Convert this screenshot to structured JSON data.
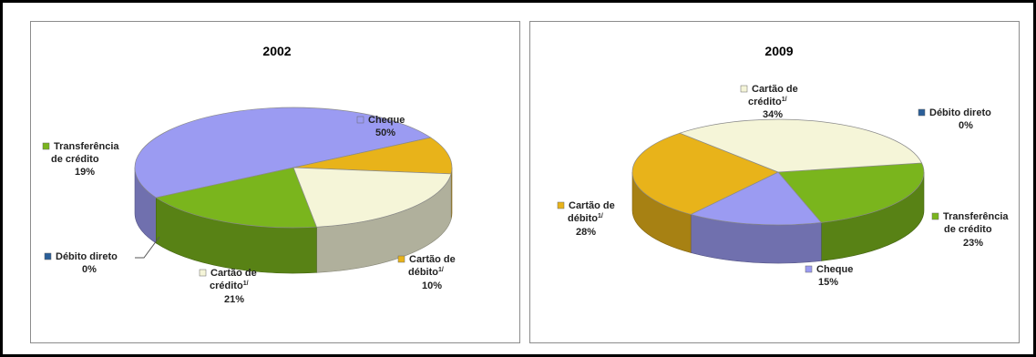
{
  "chart_data": [
    {
      "type": "pie",
      "title": "2002",
      "slices": [
        {
          "name": "Cheque",
          "value": 50,
          "pct": "50%",
          "color": "#9b9bf2"
        },
        {
          "name": "Cartão de débito",
          "sup": "1/",
          "value": 10,
          "pct": "10%",
          "color": "#e8b31a"
        },
        {
          "name": "Cartão de crédito",
          "sup": "1/",
          "value": 21,
          "pct": "21%",
          "color": "#f5f5d8"
        },
        {
          "name": "Débito direto",
          "value": 0,
          "pct": "0%",
          "color": "#2a5f99"
        },
        {
          "name": "Transferência de crédito",
          "value": 19,
          "pct": "19%",
          "color": "#7ab51d"
        }
      ]
    },
    {
      "type": "pie",
      "title": "2009",
      "slices": [
        {
          "name": "Débito direto",
          "value": 0,
          "pct": "0%",
          "color": "#2a5f99"
        },
        {
          "name": "Transferência de crédito",
          "value": 23,
          "pct": "23%",
          "color": "#7ab51d"
        },
        {
          "name": "Cheque",
          "value": 15,
          "pct": "15%",
          "color": "#9b9bf2"
        },
        {
          "name": "Cartão de débito",
          "sup": "1/",
          "value": 28,
          "pct": "28%",
          "color": "#e8b31a"
        },
        {
          "name": "Cartão de crédito",
          "sup": "1/",
          "value": 34,
          "pct": "34%",
          "color": "#f5f5d8"
        }
      ]
    }
  ],
  "legend_labels": {
    "c2002": {
      "cheque": {
        "line1": "Cheque",
        "pct": "50%"
      },
      "transf": {
        "line1": "Transferência",
        "line2": "de crédito",
        "pct": "19%"
      },
      "debito_direto": {
        "line1": "Débito direto",
        "pct": "0%"
      },
      "cartao_credito": {
        "line1": "Cartão de",
        "line2": "crédito",
        "sup": "1/",
        "pct": "21%"
      },
      "cartao_debito": {
        "line1": "Cartão de",
        "line2": "débito",
        "sup": "1/",
        "pct": "10%"
      }
    },
    "c2009": {
      "cartao_credito": {
        "line1": "Cartão de",
        "line2": "crédito",
        "sup": "1/",
        "pct": "34%"
      },
      "debito_direto": {
        "line1": "Débito direto",
        "pct": "0%"
      },
      "cartao_debito": {
        "line1": "Cartão de",
        "line2": "débito",
        "sup": "1/",
        "pct": "28%"
      },
      "transf": {
        "line1": "Transferência",
        "line2": "de crédito",
        "pct": "23%"
      },
      "cheque": {
        "line1": "Cheque",
        "pct": "15%"
      }
    }
  }
}
